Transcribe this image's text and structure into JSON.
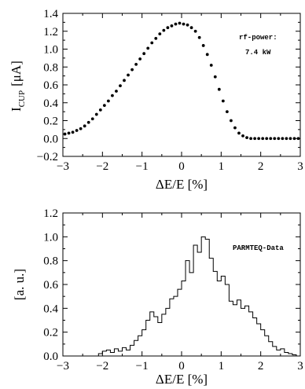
{
  "chart_data": [
    {
      "type": "scatter",
      "xlabel": "ΔE/E  [%]",
      "ylabel": "I",
      "ylabel_sub": "CUP",
      "ylabel_unit": "[μA]",
      "xlim": [
        -3,
        3
      ],
      "ylim": [
        -0.2,
        1.4
      ],
      "xticks": [
        -3,
        -2,
        -1,
        0,
        1,
        2,
        3
      ],
      "yticks": [
        -0.2,
        0.0,
        0.2,
        0.4,
        0.6,
        0.8,
        1.0,
        1.2,
        1.4
      ],
      "annotation": [
        "rf-power:",
        "7.4 kW"
      ],
      "series": [
        {
          "marker": "dot",
          "x": [
            -2.95,
            -2.85,
            -2.75,
            -2.65,
            -2.55,
            -2.45,
            -2.35,
            -2.25,
            -2.15,
            -2.05,
            -1.95,
            -1.85,
            -1.75,
            -1.65,
            -1.55,
            -1.45,
            -1.35,
            -1.25,
            -1.15,
            -1.05,
            -0.95,
            -0.85,
            -0.75,
            -0.65,
            -0.55,
            -0.45,
            -0.35,
            -0.25,
            -0.15,
            -0.05,
            0.05,
            0.15,
            0.25,
            0.35,
            0.45,
            0.55,
            0.65,
            0.75,
            0.85,
            0.95,
            1.05,
            1.15,
            1.25,
            1.35,
            1.45,
            1.55,
            1.65,
            1.75,
            1.85,
            1.95,
            2.05,
            2.15,
            2.25,
            2.35,
            2.45,
            2.55,
            2.65,
            2.75,
            2.85,
            2.95
          ],
          "y": [
            0.05,
            0.06,
            0.07,
            0.09,
            0.11,
            0.14,
            0.18,
            0.22,
            0.27,
            0.32,
            0.37,
            0.42,
            0.48,
            0.53,
            0.59,
            0.65,
            0.71,
            0.77,
            0.83,
            0.89,
            0.95,
            1.01,
            1.07,
            1.12,
            1.17,
            1.21,
            1.24,
            1.26,
            1.28,
            1.29,
            1.28,
            1.27,
            1.24,
            1.2,
            1.13,
            1.04,
            0.94,
            0.82,
            0.69,
            0.55,
            0.42,
            0.3,
            0.2,
            0.12,
            0.06,
            0.03,
            0.01,
            0.0,
            0.0,
            0.0,
            0.0,
            0.0,
            0.0,
            0.0,
            0.0,
            0.0,
            0.0,
            0.0,
            0.0,
            0.0
          ]
        }
      ]
    },
    {
      "type": "histogram",
      "xlabel": "ΔE/E  [%]",
      "ylabel": "[a. u.]",
      "xlim": [
        -3,
        3
      ],
      "ylim": [
        0.0,
        1.2
      ],
      "xticks": [
        -3,
        -2,
        -1,
        0,
        1,
        2,
        3
      ],
      "yticks": [
        0.0,
        0.2,
        0.4,
        0.6,
        0.8,
        1.0,
        1.2
      ],
      "annotation": "PARMTEQ-Data",
      "series": [
        {
          "bin_width": 0.1,
          "bin_start": -2.1,
          "values": [
            0.02,
            0.04,
            0.05,
            0.03,
            0.06,
            0.04,
            0.07,
            0.05,
            0.09,
            0.13,
            0.17,
            0.22,
            0.3,
            0.37,
            0.33,
            0.28,
            0.35,
            0.4,
            0.48,
            0.5,
            0.56,
            0.63,
            0.8,
            0.7,
            0.93,
            0.87,
            1.0,
            0.98,
            0.82,
            0.71,
            0.63,
            0.67,
            0.6,
            0.46,
            0.43,
            0.47,
            0.4,
            0.42,
            0.37,
            0.32,
            0.27,
            0.22,
            0.17,
            0.12,
            0.08,
            0.05,
            0.06,
            0.03,
            0.02,
            0.01,
            0.0
          ]
        }
      ]
    }
  ]
}
